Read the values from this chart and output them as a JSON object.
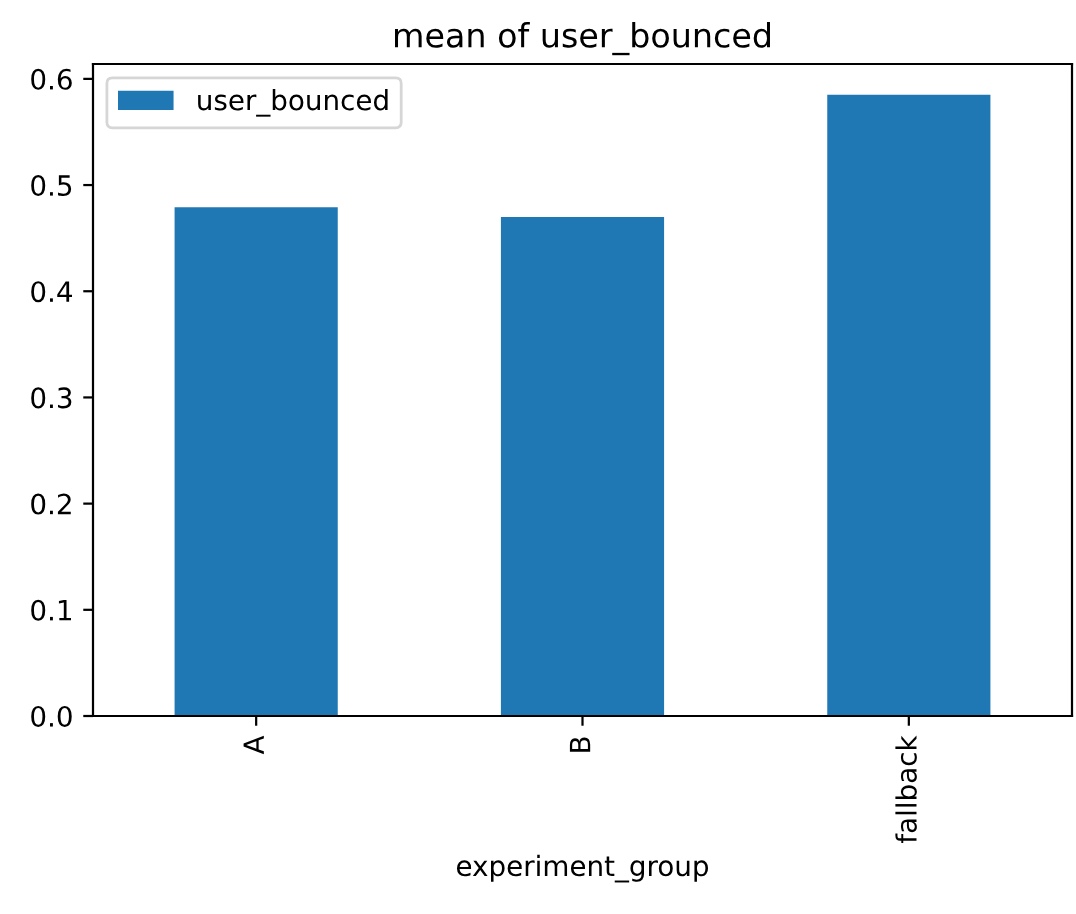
{
  "chart_data": {
    "type": "bar",
    "title": "mean of user_bounced",
    "xlabel": "experiment_group",
    "categories": [
      "A",
      "B",
      "fallback"
    ],
    "series": [
      {
        "name": "user_bounced",
        "color": "#1f77b4",
        "values": [
          0.479,
          0.47,
          0.585
        ]
      }
    ],
    "ylim": [
      0,
      0.614
    ],
    "yticks": [
      {
        "value": 0,
        "label": "0.0"
      },
      0.1,
      0.2,
      0.3,
      0.4,
      0.5,
      0.6
    ],
    "grid": false,
    "legend": "top left"
  }
}
